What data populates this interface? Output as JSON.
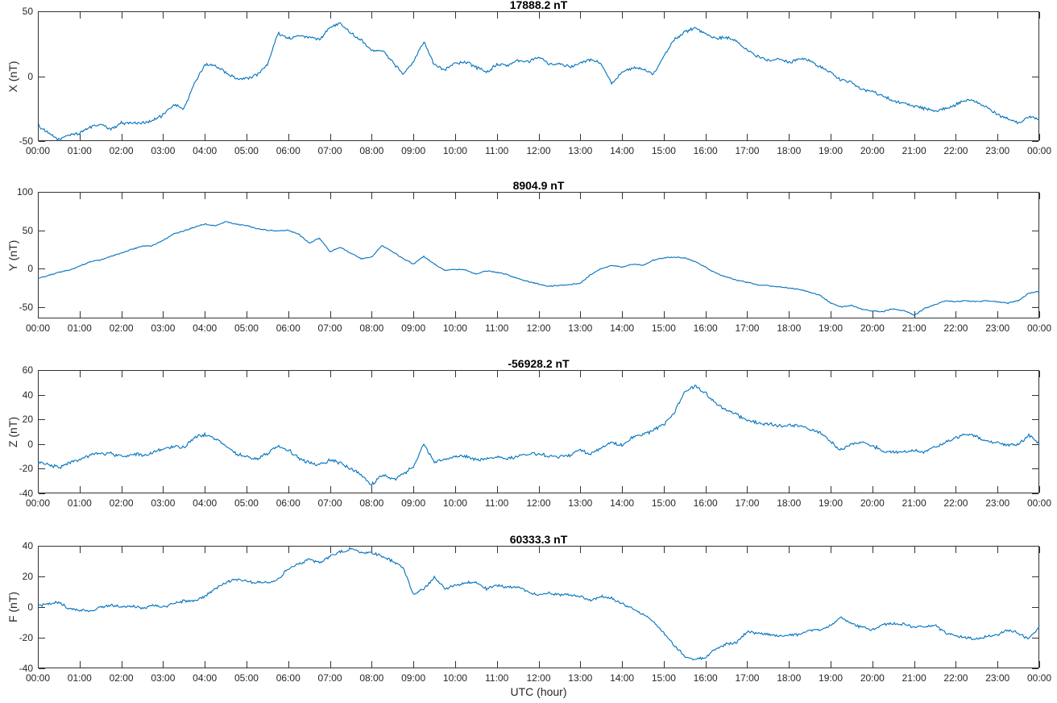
{
  "figure": {
    "xlabel": "UTC (hour)",
    "x_tick_labels": [
      "00:00",
      "01:00",
      "02:00",
      "03:00",
      "04:00",
      "05:00",
      "06:00",
      "07:00",
      "08:00",
      "09:00",
      "10:00",
      "11:00",
      "12:00",
      "13:00",
      "14:00",
      "15:00",
      "16:00",
      "17:00",
      "18:00",
      "19:00",
      "20:00",
      "21:00",
      "22:00",
      "23:00",
      "00:00"
    ],
    "line_color": "#0072BD",
    "axis_color": "#333333",
    "text_color": "#262626",
    "background_color": "#ffffff"
  },
  "chart_data": [
    {
      "type": "line",
      "title": "17888.2 nT",
      "ylabel": "X (nT)",
      "ylim": [
        -50,
        50
      ],
      "yticks": [
        -50,
        0,
        50
      ],
      "x_range_hours": [
        0,
        24
      ],
      "x_step_hours": 0.25,
      "noise_amplitude": 1.4,
      "values": [
        -38,
        -44,
        -49,
        -45,
        -44,
        -39,
        -37,
        -41,
        -36,
        -36,
        -36,
        -34,
        -30,
        -22,
        -25,
        -6,
        9,
        8,
        3,
        -2,
        -2,
        1,
        9,
        33,
        29,
        31,
        30,
        28,
        38,
        41,
        33,
        28,
        20,
        20,
        11,
        2,
        11,
        27,
        9,
        5,
        10,
        11,
        7,
        3,
        9,
        8,
        12,
        11,
        15,
        9,
        10,
        7,
        10,
        13,
        10,
        -5,
        3,
        6,
        6,
        1,
        15,
        28,
        34,
        37,
        32,
        29,
        30,
        27,
        20,
        15,
        12,
        14,
        10,
        14,
        12,
        7,
        3,
        -3,
        -5,
        -10,
        -12,
        -15,
        -19,
        -21,
        -23,
        -25,
        -27,
        -25,
        -22,
        -18,
        -20,
        -24,
        -30,
        -33,
        -36,
        -31,
        -33
      ]
    },
    {
      "type": "line",
      "title": "8904.9 nT",
      "ylabel": "Y (nT)",
      "ylim": [
        -65,
        100
      ],
      "yticks": [
        -50,
        0,
        50,
        100
      ],
      "x_range_hours": [
        0,
        24
      ],
      "x_step_hours": 0.25,
      "noise_amplitude": 0.9,
      "values": [
        -13,
        -9,
        -5,
        -2,
        3,
        9,
        11,
        16,
        20,
        25,
        29,
        30,
        37,
        45,
        49,
        54,
        58,
        56,
        61,
        58,
        56,
        52,
        50,
        49,
        50,
        45,
        33,
        40,
        22,
        28,
        20,
        13,
        15,
        30,
        22,
        13,
        6,
        16,
        6,
        -2,
        -1,
        -2,
        -7,
        -3,
        -5,
        -8,
        -13,
        -17,
        -20,
        -23,
        -22,
        -21,
        -19,
        -8,
        0,
        4,
        2,
        6,
        4,
        11,
        14,
        15,
        14,
        9,
        2,
        -6,
        -11,
        -15,
        -18,
        -21,
        -22,
        -24,
        -25,
        -27,
        -31,
        -35,
        -45,
        -50,
        -48,
        -53,
        -55,
        -56,
        -52,
        -55,
        -61,
        -52,
        -47,
        -42,
        -43,
        -42,
        -43,
        -42,
        -43,
        -45,
        -42,
        -32,
        -30
      ]
    },
    {
      "type": "line",
      "title": "-56928.2 nT",
      "ylabel": "Z (nT)",
      "ylim": [
        -40,
        60
      ],
      "yticks": [
        -40,
        -20,
        0,
        20,
        40,
        60
      ],
      "x_range_hours": [
        0,
        24
      ],
      "x_step_hours": 0.25,
      "noise_amplitude": 1.7,
      "values": [
        -15,
        -17,
        -19,
        -15,
        -13,
        -9,
        -7,
        -8,
        -10,
        -8,
        -9,
        -7,
        -4,
        -2,
        -3,
        5,
        8,
        4,
        -2,
        -8,
        -10,
        -12,
        -8,
        -1,
        -5,
        -11,
        -15,
        -17,
        -13,
        -15,
        -20,
        -25,
        -33,
        -25,
        -29,
        -25,
        -18,
        0,
        -15,
        -12,
        -10,
        -10,
        -13,
        -12,
        -10,
        -12,
        -10,
        -8,
        -8,
        -10,
        -10,
        -9,
        -5,
        -8,
        -3,
        1,
        -1,
        5,
        8,
        11,
        16,
        26,
        42,
        47,
        41,
        33,
        28,
        24,
        19,
        17,
        16,
        15,
        15,
        15,
        12,
        9,
        2,
        -5,
        0,
        1,
        -1,
        -6,
        -6,
        -6,
        -5,
        -6,
        -3,
        1,
        5,
        8,
        6,
        2,
        1,
        -1,
        0,
        7,
        0
      ]
    },
    {
      "type": "line",
      "title": "60333.3 nT",
      "ylabel": "F (nT)",
      "ylim": [
        -40,
        40
      ],
      "yticks": [
        -40,
        -20,
        0,
        20,
        40
      ],
      "x_range_hours": [
        0,
        24
      ],
      "x_step_hours": 0.25,
      "noise_amplitude": 1.1,
      "values": [
        1,
        2,
        3,
        -1,
        -2,
        -3,
        0,
        1,
        0,
        1,
        -1,
        1,
        0,
        2,
        4,
        4,
        7,
        12,
        16,
        18,
        17,
        16,
        16,
        18,
        25,
        28,
        31,
        29,
        33,
        36,
        38,
        35,
        36,
        33,
        30,
        26,
        8,
        12,
        19,
        12,
        14,
        16,
        16,
        12,
        14,
        13,
        13,
        10,
        8,
        9,
        8,
        8,
        7,
        4,
        7,
        6,
        2,
        -1,
        -5,
        -9,
        -17,
        -25,
        -32,
        -34,
        -33,
        -27,
        -24,
        -23,
        -16,
        -17,
        -18,
        -19,
        -18,
        -18,
        -15,
        -15,
        -12,
        -6,
        -11,
        -13,
        -15,
        -11,
        -11,
        -11,
        -13,
        -13,
        -12,
        -17,
        -19,
        -20,
        -21,
        -19,
        -18,
        -15,
        -17,
        -21,
        -13
      ]
    }
  ]
}
